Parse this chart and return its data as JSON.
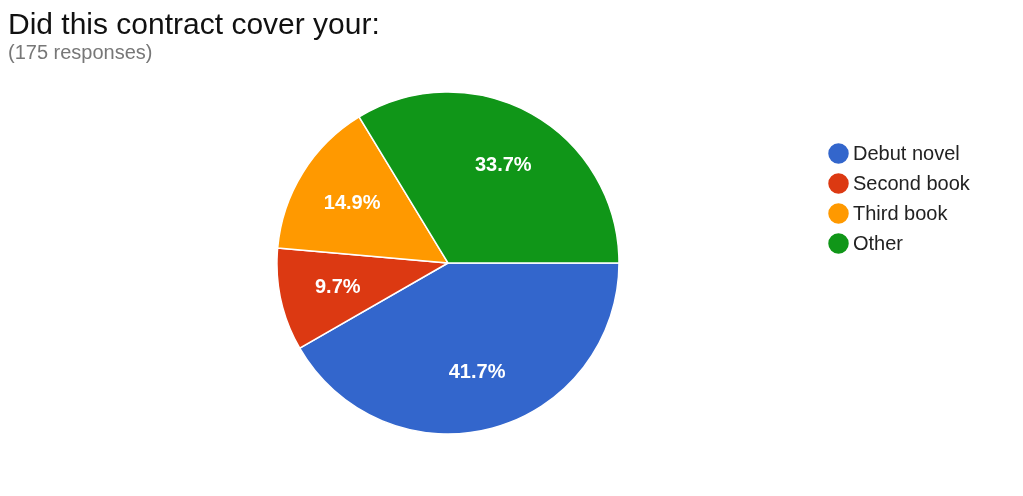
{
  "chart_data": {
    "type": "pie",
    "title": "Did this contract cover your:",
    "subtitle": "(175 responses)",
    "categories": [
      "Debut novel",
      "Second book",
      "Third book",
      "Other"
    ],
    "values": [
      41.7,
      9.7,
      14.9,
      33.7
    ],
    "colors": [
      "#3366cc",
      "#dc3912",
      "#ff9900",
      "#109618"
    ],
    "value_labels": [
      "41.7%",
      "9.7%",
      "14.9%",
      "33.7%"
    ],
    "legend": "right"
  }
}
